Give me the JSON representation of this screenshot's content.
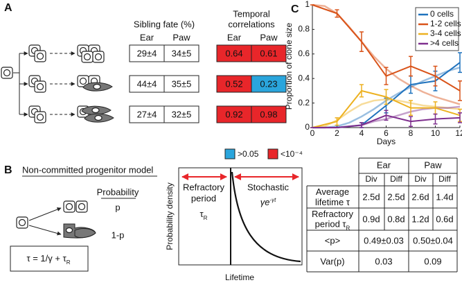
{
  "panel_a": {
    "label": "A",
    "sibling_fate": {
      "title": "Sibling fate (%)",
      "columns": [
        "Ear",
        "Paw"
      ],
      "rows": [
        [
          "29±4",
          "34±5"
        ],
        [
          "44±4",
          "35±5"
        ],
        [
          "27±4",
          "32±5"
        ]
      ]
    },
    "temporal_correlations": {
      "title": [
        "Temporal",
        "correlations"
      ],
      "columns": [
        "Ear",
        "Paw"
      ],
      "values": [
        [
          0.64,
          0.61
        ],
        [
          0.52,
          0.23
        ],
        [
          0.92,
          0.98
        ]
      ],
      "colors": [
        [
          "#e8262a",
          "#e8262a"
        ],
        [
          "#e8262a",
          "#2aa5dc"
        ],
        [
          "#e8262a",
          "#e8262a"
        ]
      ]
    },
    "legend": [
      {
        "label": ">0.05",
        "color": "#2aa5dc"
      },
      {
        "label": "<10⁻⁴",
        "color": "#e8262a"
      }
    ]
  },
  "panel_b": {
    "label": "B",
    "title": "Non-committed progenitor model",
    "probability_header": "Probability",
    "outcomes": [
      "p",
      "1-p"
    ],
    "formula": {
      "text": "τ = 1/γ + τ",
      "subscript": "R"
    },
    "density_plot": {
      "y_label": "Probability density",
      "x_label": "Lifetime",
      "refractory": {
        "lines": [
          "Refractory",
          "period"
        ],
        "symbol": "τ",
        "subscript": "R"
      },
      "stochastic": {
        "label": "Stochastic",
        "expr": "γe",
        "superscript": "-γt"
      }
    },
    "table": {
      "groups": [
        "Ear",
        "Paw"
      ],
      "subheaders": [
        "Div",
        "Diff",
        "Div",
        "Diff"
      ],
      "rows": [
        {
          "label": [
            "Average",
            "lifetime τ"
          ],
          "cells": [
            "2.5d",
            "2.5d",
            "2.6d",
            "1.4d"
          ]
        },
        {
          "label": [
            "Refractory",
            "period τ"
          ],
          "label_subscript": "R",
          "cells": [
            "0.9d",
            "0.8d",
            "1.2d",
            "0.6d"
          ]
        },
        {
          "label": [
            "<p>"
          ],
          "cells": [
            "0.49±0.03",
            "0.50±0.04"
          ]
        },
        {
          "label": [
            "Var(p)"
          ],
          "cells": [
            "0.03",
            "0.09"
          ]
        }
      ]
    }
  },
  "panel_c": {
    "label": "C"
  },
  "chart_data": {
    "type": "line",
    "x_label": "Days",
    "y_label": "Proportion of clone size",
    "x": [
      0,
      2,
      4,
      6,
      8,
      10,
      12
    ],
    "model_x": [
      0,
      1,
      2,
      3,
      4,
      5,
      6,
      7,
      8,
      9,
      10,
      11,
      12
    ],
    "xlim": [
      0,
      12
    ],
    "xticks": [
      0,
      2,
      4,
      6,
      8,
      10,
      12
    ],
    "ylim": [
      0,
      1
    ],
    "yticks": [
      0,
      0.2,
      0.4,
      0.6,
      0.8,
      1
    ],
    "legend": "upper right",
    "series": [
      {
        "name": "0 cells",
        "color": "#1f72bd",
        "values": [
          0,
          0,
          0.02,
          0.18,
          0.35,
          0.38,
          0.53
        ],
        "errors": [
          0,
          0,
          0.02,
          0.06,
          0.07,
          0.08,
          0.08
        ],
        "model_values": [
          0,
          0,
          0.01,
          0.04,
          0.09,
          0.15,
          0.22,
          0.28,
          0.33,
          0.38,
          0.42,
          0.46,
          0.49
        ]
      },
      {
        "name": "1-2 cells",
        "color": "#d95319",
        "values": [
          1,
          0.93,
          0.7,
          0.42,
          0.5,
          0.42,
          0.3
        ],
        "errors": [
          0,
          0.03,
          0.08,
          0.07,
          0.08,
          0.08,
          0.08
        ],
        "model_values": [
          1,
          0.99,
          0.93,
          0.82,
          0.7,
          0.58,
          0.48,
          0.4,
          0.34,
          0.29,
          0.25,
          0.22,
          0.19
        ]
      },
      {
        "name": "3-4 cells",
        "color": "#edb120",
        "values": [
          0,
          0.05,
          0.3,
          0.25,
          0.16,
          0.16,
          0.1
        ],
        "errors": [
          0,
          0.03,
          0.05,
          0.06,
          0.06,
          0.05,
          0.05
        ],
        "model_values": [
          0,
          0.01,
          0.06,
          0.13,
          0.19,
          0.22,
          0.23,
          0.22,
          0.2,
          0.18,
          0.17,
          0.16,
          0.15
        ]
      },
      {
        "name": ">4 cells",
        "color": "#7e2f8e",
        "values": [
          0,
          0,
          0.02,
          0.1,
          0.05,
          0.07,
          0.08
        ],
        "errors": [
          0,
          0,
          0.02,
          0.04,
          0.04,
          0.04,
          0.04
        ],
        "model_values": [
          0,
          0,
          0,
          0.01,
          0.02,
          0.05,
          0.07,
          0.1,
          0.13,
          0.15,
          0.16,
          0.16,
          0.17
        ]
      }
    ]
  }
}
